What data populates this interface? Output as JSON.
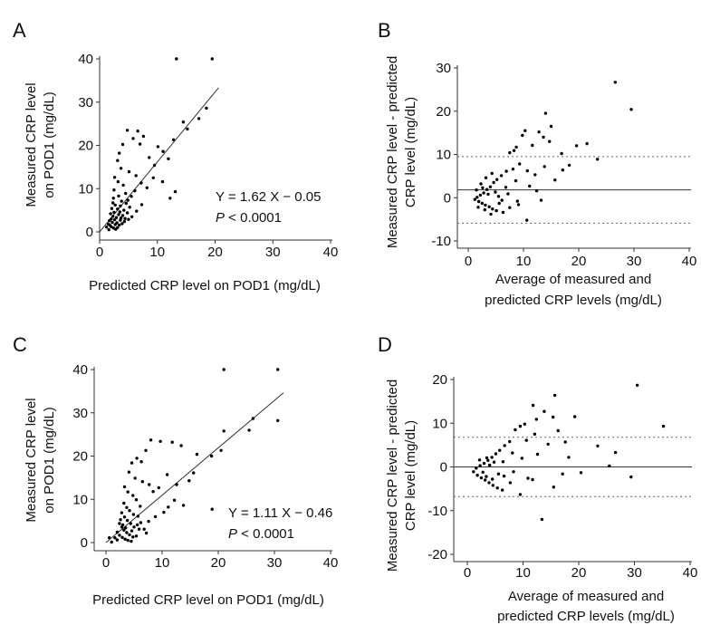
{
  "chart_data": [
    {
      "panel": "A",
      "type": "scatter",
      "xlabel": "Predicted CRP level on POD1 (mg/dL)",
      "ylabel": [
        "Measured CRP level",
        "on POD1 (mg/dL)"
      ],
      "xlim": [
        0,
        40
      ],
      "ylim": [
        0,
        40
      ],
      "xticks": [
        0,
        10,
        20,
        30,
        40
      ],
      "yticks": [
        0,
        10,
        20,
        30,
        40
      ],
      "regression": {
        "slope": 1.62,
        "intercept": -0.05,
        "x_range": [
          0,
          20.6
        ]
      },
      "annotation": {
        "equation": "Y = 1.62 X − 0.05",
        "p_prefix": "P",
        "p_rest": " < 0.0001"
      },
      "points": [
        [
          13.3,
          40
        ],
        [
          19.5,
          40
        ],
        [
          18.5,
          28.6
        ],
        [
          17.2,
          26.2
        ],
        [
          15.2,
          23.8
        ],
        [
          14.5,
          25.4
        ],
        [
          12.8,
          21.3
        ],
        [
          11.9,
          16.9
        ],
        [
          11,
          18.6
        ],
        [
          10.1,
          19.7
        ],
        [
          9.5,
          15.4
        ],
        [
          8.6,
          17.2
        ],
        [
          7.6,
          22.1
        ],
        [
          7,
          20.3
        ],
        [
          6.6,
          23.3
        ],
        [
          5.8,
          21.6
        ],
        [
          4.8,
          23.5
        ],
        [
          4,
          20.2
        ],
        [
          3.4,
          18.2
        ],
        [
          3.1,
          16.5
        ],
        [
          3.7,
          14.7
        ],
        [
          5.1,
          13.9
        ],
        [
          6.3,
          13
        ],
        [
          7.2,
          11.3
        ],
        [
          8.2,
          10.2
        ],
        [
          9.3,
          12.5
        ],
        [
          10.9,
          11.6
        ],
        [
          12.2,
          7.8
        ],
        [
          13.1,
          9.3
        ],
        [
          2.6,
          12.6
        ],
        [
          3.2,
          11.6
        ],
        [
          4.1,
          10.8
        ],
        [
          4.5,
          8.9
        ],
        [
          5.5,
          8.2
        ],
        [
          6.1,
          9.5
        ],
        [
          2.5,
          9.7
        ],
        [
          3.3,
          8.3
        ],
        [
          3.8,
          7.1
        ],
        [
          4.6,
          6.6
        ],
        [
          5.2,
          5.7
        ],
        [
          2.4,
          7.8
        ],
        [
          2.7,
          6.2
        ],
        [
          3.1,
          5.3
        ],
        [
          3.5,
          4.6
        ],
        [
          4,
          3.8
        ],
        [
          4.4,
          3.1
        ],
        [
          2.1,
          5.4
        ],
        [
          1.9,
          4.2
        ],
        [
          2.3,
          3.6
        ],
        [
          2.6,
          2.8
        ],
        [
          3.0,
          2.1
        ],
        [
          3.4,
          1.6
        ],
        [
          1.7,
          2.6
        ],
        [
          1.5,
          1.8
        ],
        [
          2.0,
          1.2
        ],
        [
          2.4,
          0.9
        ],
        [
          2.8,
          0.6
        ],
        [
          1.2,
          1.1
        ],
        [
          1.6,
          0.5
        ],
        [
          3.1,
          1.0
        ],
        [
          3.6,
          2.7
        ],
        [
          4.2,
          5.0
        ],
        [
          4.8,
          4.4
        ],
        [
          5.6,
          3.5
        ],
        [
          2.2,
          2.2
        ],
        [
          2.9,
          3.3
        ],
        [
          3.3,
          4.0
        ],
        [
          3.7,
          3.2
        ],
        [
          2.5,
          4.5
        ],
        [
          2.0,
          3.0
        ],
        [
          1.8,
          1.5
        ],
        [
          2.7,
          1.7
        ],
        [
          3.9,
          1.9
        ],
        [
          4.3,
          2.4
        ],
        [
          5.0,
          2.9
        ],
        [
          6.4,
          4.8
        ],
        [
          7.3,
          6.3
        ],
        [
          2.3,
          6.7
        ],
        [
          3.6,
          6.0
        ],
        [
          4.9,
          7.3
        ]
      ]
    },
    {
      "panel": "B",
      "type": "scatter",
      "xlabel": [
        "Average of measured and",
        "predicted CRP levels (mg/dL)"
      ],
      "ylabel": [
        "Measured CRP level - predicted",
        "CRP level (mg/dL)"
      ],
      "xlim": [
        0,
        40
      ],
      "ylim": [
        -10,
        30
      ],
      "xticks": [
        0,
        10,
        20,
        30,
        40
      ],
      "yticks": [
        -10,
        0,
        10,
        20,
        30
      ],
      "hlines": [
        {
          "y": 1.8,
          "style": "solid"
        },
        {
          "y": 9.5,
          "style": "dotted"
        },
        {
          "y": -5.9,
          "style": "dotted"
        }
      ],
      "points": [
        [
          26.6,
          26.7
        ],
        [
          29.5,
          20.4
        ],
        [
          14,
          19.5
        ],
        [
          15,
          16.5
        ],
        [
          12.8,
          15.2
        ],
        [
          10.3,
          15.5
        ],
        [
          9.8,
          14.4
        ],
        [
          13.6,
          14
        ],
        [
          14.7,
          13
        ],
        [
          21.5,
          12.5
        ],
        [
          19.6,
          12
        ],
        [
          11.6,
          12.1
        ],
        [
          8.7,
          11.7
        ],
        [
          8.3,
          10.9
        ],
        [
          7.5,
          10.4
        ],
        [
          16.9,
          10.2
        ],
        [
          23.4,
          8.9
        ],
        [
          18.3,
          7.5
        ],
        [
          13.8,
          7.2
        ],
        [
          12.1,
          5.3
        ],
        [
          10.7,
          6.2
        ],
        [
          9.3,
          7.8
        ],
        [
          8.1,
          6.6
        ],
        [
          6.9,
          6.1
        ],
        [
          6,
          5.1
        ],
        [
          5.2,
          4.2
        ],
        [
          4.6,
          3.5
        ],
        [
          4,
          2.5
        ],
        [
          3.4,
          1.9
        ],
        [
          2.8,
          1.1
        ],
        [
          2.2,
          0.6
        ],
        [
          1.6,
          0.1
        ],
        [
          1.2,
          -0.4
        ],
        [
          1.9,
          -0.9
        ],
        [
          2.5,
          -1.3
        ],
        [
          3.1,
          -1.7
        ],
        [
          3.8,
          -2.1
        ],
        [
          4.4,
          -2.6
        ],
        [
          5.1,
          -3.0
        ],
        [
          6.3,
          -3.4
        ],
        [
          7.5,
          -2.3
        ],
        [
          9.1,
          -1.6
        ],
        [
          10.6,
          -5.2
        ],
        [
          12.4,
          1.6
        ],
        [
          15.7,
          4.1
        ],
        [
          17.1,
          6.4
        ],
        [
          5.5,
          0.3
        ],
        [
          6.8,
          2.4
        ],
        [
          8.6,
          3.9
        ],
        [
          2.3,
          3.2
        ],
        [
          3.2,
          4.6
        ],
        [
          4.3,
          5.6
        ],
        [
          1.5,
          1.8
        ],
        [
          2.6,
          2.3
        ],
        [
          3.6,
          0.8
        ],
        [
          4.9,
          1.3
        ],
        [
          6.1,
          -0.6
        ],
        [
          7.2,
          0.9
        ],
        [
          8.9,
          -0.8
        ],
        [
          11.1,
          2.7
        ],
        [
          13.2,
          -0.6
        ],
        [
          3.0,
          -2.8
        ],
        [
          4.1,
          -3.8
        ],
        [
          5.6,
          -1.3
        ],
        [
          1.8,
          -2.2
        ]
      ]
    },
    {
      "panel": "C",
      "type": "scatter",
      "xlabel": "Predicted CRP level on POD1 (mg/dL)",
      "ylabel": [
        "Measured CRP level",
        "on POD1 (mg/dL)"
      ],
      "xlim": [
        0,
        40
      ],
      "ylim": [
        0,
        40
      ],
      "xticks": [
        0,
        10,
        20,
        30,
        40
      ],
      "yticks": [
        0,
        10,
        20,
        30,
        40
      ],
      "regression": {
        "slope": 1.11,
        "intercept": -0.46,
        "x_range": [
          0,
          31.6
        ]
      },
      "annotation": {
        "equation": "Y = 1.11 X − 0.46",
        "p_prefix": "P",
        "p_rest": " < 0.0001"
      },
      "points": [
        [
          21,
          40
        ],
        [
          30.6,
          40
        ],
        [
          30.6,
          28.2
        ],
        [
          26.2,
          28.7
        ],
        [
          25.5,
          26
        ],
        [
          21,
          25.8
        ],
        [
          20.5,
          21.3
        ],
        [
          18.8,
          20
        ],
        [
          16.2,
          20.4
        ],
        [
          11.8,
          23.2
        ],
        [
          13.4,
          22.4
        ],
        [
          9.7,
          23.4
        ],
        [
          8,
          23.7
        ],
        [
          7.1,
          21.3
        ],
        [
          6.3,
          18.7
        ],
        [
          5.5,
          19.5
        ],
        [
          4.6,
          18.4
        ],
        [
          4.1,
          16.3
        ],
        [
          5.2,
          14.9
        ],
        [
          6.5,
          14.1
        ],
        [
          7.7,
          13.4
        ],
        [
          8.4,
          11.8
        ],
        [
          9.4,
          12.7
        ],
        [
          10.9,
          15.7
        ],
        [
          12.6,
          13.4
        ],
        [
          14.8,
          14.3
        ],
        [
          15.6,
          16.1
        ],
        [
          18.9,
          7.7
        ],
        [
          13.8,
          8.6
        ],
        [
          12.2,
          9.8
        ],
        [
          3.3,
          12.9
        ],
        [
          3.9,
          11.7
        ],
        [
          4.8,
          10.9
        ],
        [
          5.4,
          9.9
        ],
        [
          6.1,
          8.4
        ],
        [
          3.2,
          9.1
        ],
        [
          3.7,
          8.1
        ],
        [
          4.2,
          7.4
        ],
        [
          4.9,
          6.5
        ],
        [
          5.7,
          6.1
        ],
        [
          2.8,
          6.9
        ],
        [
          3.3,
          5.9
        ],
        [
          3.8,
          5.1
        ],
        [
          4.4,
          4.4
        ],
        [
          5.0,
          3.6
        ],
        [
          5.9,
          3.1
        ],
        [
          2.4,
          4.4
        ],
        [
          2.8,
          3.6
        ],
        [
          3.2,
          2.9
        ],
        [
          3.7,
          2.3
        ],
        [
          4.2,
          1.8
        ],
        [
          4.8,
          1.3
        ],
        [
          2.0,
          2.4
        ],
        [
          2.4,
          1.7
        ],
        [
          2.9,
          1.2
        ],
        [
          3.4,
          0.8
        ],
        [
          3.9,
          0.5
        ],
        [
          1.6,
          1.1
        ],
        [
          2.0,
          0.6
        ],
        [
          4.5,
          0.3
        ],
        [
          5.4,
          1.5
        ],
        [
          6.8,
          3.1
        ],
        [
          7.6,
          4.9
        ],
        [
          8.8,
          6.0
        ],
        [
          10.3,
          7.0
        ],
        [
          11.1,
          8.2
        ],
        [
          0.6,
          1.1
        ],
        [
          1.0,
          0.1
        ],
        [
          6.2,
          4.6
        ],
        [
          7.2,
          2.2
        ],
        [
          3.5,
          3.4
        ],
        [
          4.6,
          2.7
        ],
        [
          5.6,
          4.1
        ],
        [
          2.6,
          5.3
        ],
        [
          3.0,
          4.1
        ]
      ]
    },
    {
      "panel": "D",
      "type": "scatter",
      "xlabel": [
        "Average of measured and",
        "predicted CRP levels (mg/dL)"
      ],
      "ylabel": [
        "Measured CRP level - predicted",
        "CRP level (mg/dL)"
      ],
      "xlim": [
        0,
        40
      ],
      "ylim": [
        -20,
        20
      ],
      "xticks": [
        0,
        10,
        20,
        30,
        40
      ],
      "yticks": [
        -20,
        -10,
        0,
        10,
        20
      ],
      "hlines": [
        {
          "y": 0,
          "style": "solid"
        },
        {
          "y": 6.8,
          "style": "dotted"
        },
        {
          "y": -6.8,
          "style": "dotted"
        }
      ],
      "points": [
        [
          30.5,
          18.7
        ],
        [
          15.7,
          16.4
        ],
        [
          11.8,
          14.1
        ],
        [
          13.8,
          12.7
        ],
        [
          15.4,
          11.4
        ],
        [
          19.3,
          11.5
        ],
        [
          12.4,
          10.9
        ],
        [
          10.3,
          9.8
        ],
        [
          9.5,
          9.3
        ],
        [
          8.6,
          8.5
        ],
        [
          16.3,
          8.3
        ],
        [
          35.2,
          9.3
        ],
        [
          12.1,
          7.5
        ],
        [
          10.6,
          6.1
        ],
        [
          14.5,
          5.2
        ],
        [
          17.6,
          5.7
        ],
        [
          23.4,
          4.8
        ],
        [
          26.6,
          3.3
        ],
        [
          7.6,
          5.8
        ],
        [
          6.7,
          4.9
        ],
        [
          5.8,
          3.8
        ],
        [
          5.1,
          3.0
        ],
        [
          4.4,
          2.2
        ],
        [
          3.7,
          1.5
        ],
        [
          3.0,
          0.8
        ],
        [
          2.3,
          0.3
        ],
        [
          1.6,
          -0.3
        ],
        [
          1.1,
          -1.1
        ],
        [
          1.8,
          -1.9
        ],
        [
          2.5,
          -2.5
        ],
        [
          3.2,
          -3.0
        ],
        [
          3.9,
          -3.6
        ],
        [
          4.6,
          -4.2
        ],
        [
          5.4,
          -4.8
        ],
        [
          6.3,
          -5.3
        ],
        [
          7.7,
          -3.6
        ],
        [
          9.5,
          -6.3
        ],
        [
          11.7,
          -2.9
        ],
        [
          13.4,
          -12.0
        ],
        [
          15.5,
          -4.6
        ],
        [
          17.1,
          -1.6
        ],
        [
          20.4,
          -1.3
        ],
        [
          25.5,
          0.2
        ],
        [
          29.4,
          -2.3
        ],
        [
          18.2,
          2.2
        ],
        [
          12.6,
          2.9
        ],
        [
          6.4,
          1.2
        ],
        [
          4.0,
          0.4
        ],
        [
          2.8,
          -1.2
        ],
        [
          3.5,
          2.1
        ],
        [
          4.8,
          1.1
        ],
        [
          5.6,
          -1.6
        ],
        [
          8.3,
          -1.1
        ],
        [
          9.8,
          2.0
        ],
        [
          2.2,
          1.6
        ],
        [
          3.4,
          -2.2
        ],
        [
          4.5,
          -2.8
        ],
        [
          6.6,
          -2.1
        ],
        [
          8.1,
          3.2
        ],
        [
          10.9,
          -2.6
        ]
      ]
    }
  ],
  "panel_letters": [
    "A",
    "B",
    "C",
    "D"
  ]
}
